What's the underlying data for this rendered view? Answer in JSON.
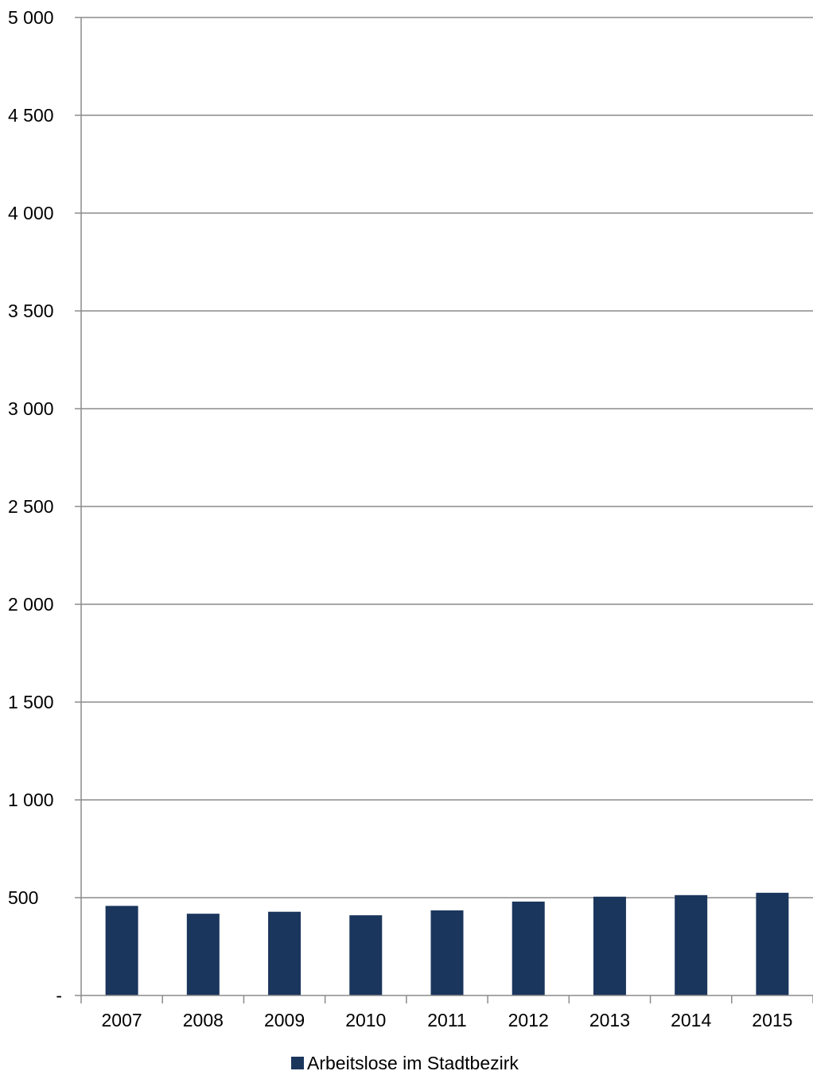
{
  "chart_data": {
    "type": "bar",
    "title": "",
    "xlabel": "",
    "ylabel": "",
    "categories": [
      "2007",
      "2008",
      "2009",
      "2010",
      "2011",
      "2012",
      "2013",
      "2014",
      "2015"
    ],
    "series": [
      {
        "name": "Arbeitslose im Stadtbezirk",
        "color": "#1b365d",
        "values": [
          458,
          418,
          428,
          410,
          435,
          480,
          505,
          513,
          525
        ]
      }
    ],
    "ylim": [
      0,
      5000
    ],
    "yticks": [
      0,
      500,
      1000,
      1500,
      2000,
      2500,
      3000,
      3500,
      4000,
      4500,
      5000
    ],
    "ytick_labels": [
      "-",
      "500",
      "1 000",
      "1 500",
      "2 000",
      "2 500",
      "3 000",
      "3 500",
      "4 000",
      "4 500",
      "5 000"
    ],
    "grid": true,
    "legend": "bottom-center"
  }
}
